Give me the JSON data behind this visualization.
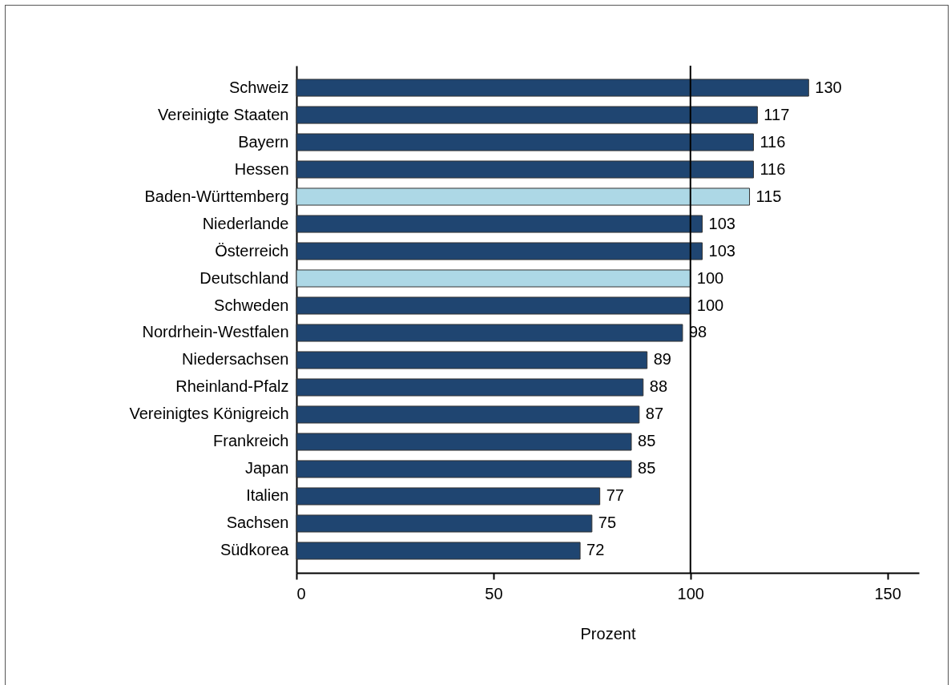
{
  "chart_data": {
    "type": "bar",
    "orientation": "horizontal",
    "xlabel": "Prozent",
    "categories": [
      "Schweiz",
      "Vereinigte Staaten",
      "Bayern",
      "Hessen",
      "Baden-Württemberg",
      "Niederlande",
      "Österreich",
      "Deutschland",
      "Schweden",
      "Nordrhein-Westfalen",
      "Niedersachsen",
      "Rheinland-Pfalz",
      "Vereinigtes Königreich",
      "Frankreich",
      "Japan",
      "Italien",
      "Sachsen",
      "Südkorea"
    ],
    "values": [
      130,
      117,
      116,
      116,
      115,
      103,
      103,
      100,
      100,
      98,
      89,
      88,
      87,
      85,
      85,
      77,
      75,
      72
    ],
    "colors": [
      "#1f4571",
      "#1f4571",
      "#1f4571",
      "#1f4571",
      "#add8e6",
      "#1f4571",
      "#1f4571",
      "#add8e6",
      "#1f4571",
      "#1f4571",
      "#1f4571",
      "#1f4571",
      "#1f4571",
      "#1f4571",
      "#1f4571",
      "#1f4571",
      "#1f4571",
      "#1f4571"
    ],
    "xlim": [
      0,
      158
    ],
    "xticks": [
      0,
      50,
      100,
      150
    ],
    "ref_lines": [
      {
        "axis": "x",
        "value": 100,
        "color": "#000000"
      }
    ],
    "data_labels": true
  }
}
